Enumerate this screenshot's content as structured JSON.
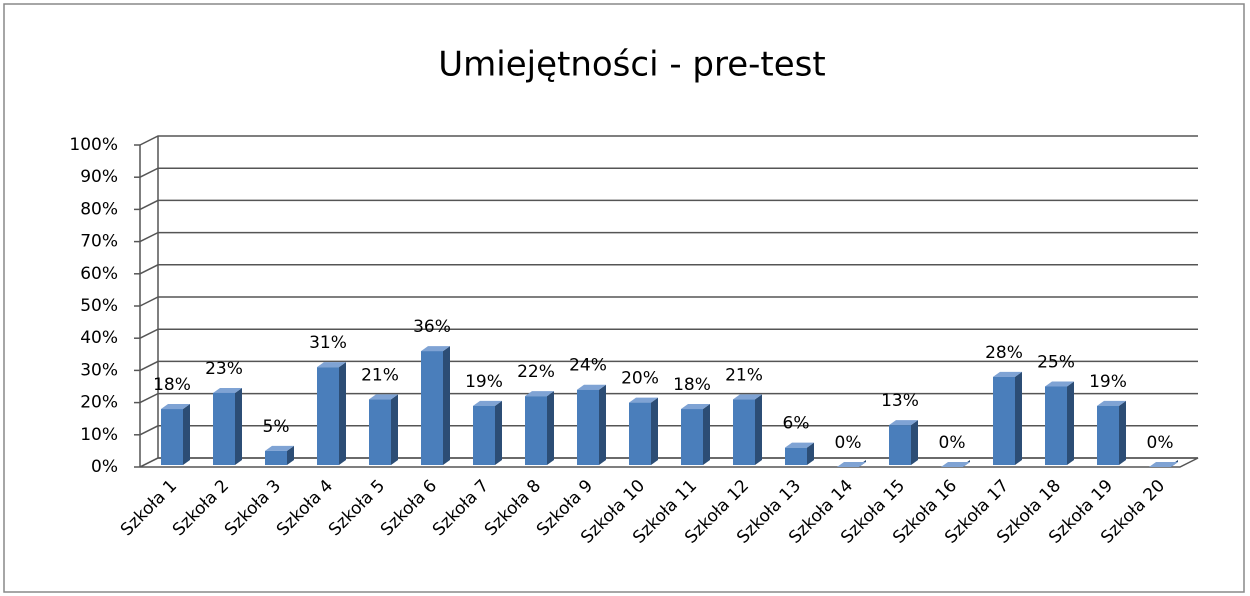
{
  "chart_data": {
    "type": "bar3d",
    "title": "Umiejętności - pre-test",
    "categories": [
      "Szkoła 1",
      "Szkoła 2",
      "Szkoła 3",
      "Szkoła 4",
      "Szkoła 5",
      "Szkoła 6",
      "Szkoła 7",
      "Szkoła 8",
      "Szkoła 9",
      "Szkoła 10",
      "Szkoła 11",
      "Szkoła 12",
      "Szkoła 13",
      "Szkoła 14",
      "Szkoła 15",
      "Szkoła 16",
      "Szkoła 17",
      "Szkoła 18",
      "Szkoła 19",
      "Szkoła 20"
    ],
    "values": [
      18,
      23,
      5,
      31,
      21,
      36,
      19,
      22,
      24,
      20,
      18,
      21,
      6,
      0,
      13,
      0,
      28,
      25,
      19,
      0
    ],
    "value_labels": [
      "18%",
      "23%",
      "5%",
      "31%",
      "21%",
      "36%",
      "19%",
      "22%",
      "24%",
      "20%",
      "18%",
      "21%",
      "6%",
      "0%",
      "13%",
      "0%",
      "28%",
      "25%",
      "19%",
      "0%"
    ],
    "color": "#4a7ebb",
    "ylim": [
      0,
      100
    ],
    "yticks": [
      {
        "value": 0,
        "label": "0%"
      },
      {
        "value": 10,
        "label": "10%"
      },
      {
        "value": 20,
        "label": "20%"
      },
      {
        "value": 30,
        "label": "30%"
      },
      {
        "value": 40,
        "label": "40%"
      },
      {
        "value": 50,
        "label": "50%"
      },
      {
        "value": 60,
        "label": "60%"
      },
      {
        "value": 70,
        "label": "70%"
      },
      {
        "value": 80,
        "label": "80%"
      },
      {
        "value": 90,
        "label": "90%"
      },
      {
        "value": 100,
        "label": "100%"
      }
    ],
    "grid": true
  }
}
